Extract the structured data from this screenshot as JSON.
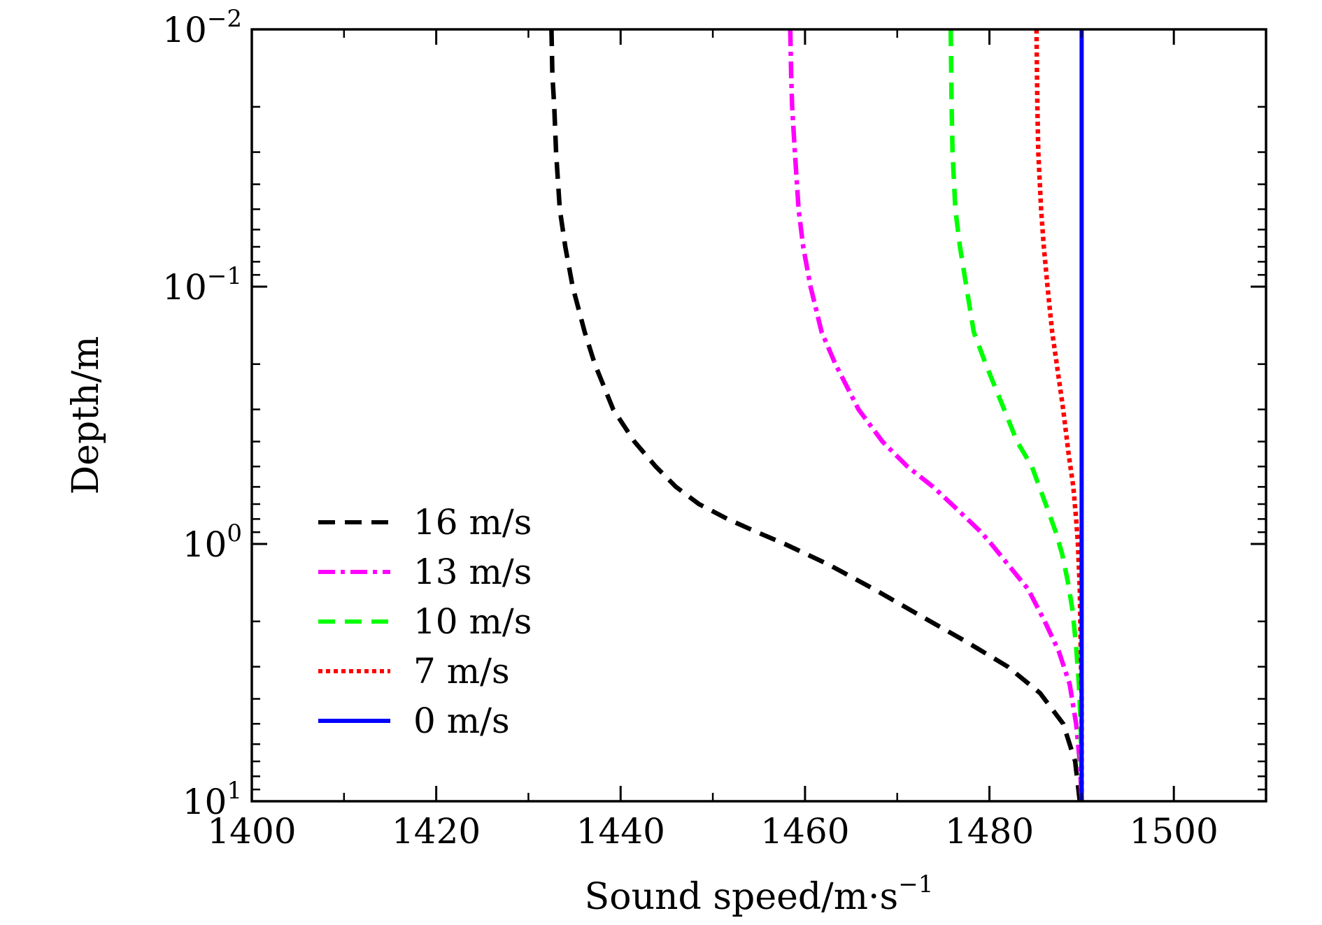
{
  "chart_data": {
    "type": "line",
    "title": "",
    "xlabel": "Sound speed/m·s",
    "xlabel_sup": "−1",
    "ylabel": "Depth/m",
    "xlim": [
      1400,
      1510
    ],
    "ylim": [
      0.01,
      10
    ],
    "yscale": "log",
    "y_inverted": true,
    "grid": false,
    "legend_position": "lower-left",
    "x_ticks": [
      1400,
      1420,
      1440,
      1460,
      1480,
      1500
    ],
    "y_ticks": [
      {
        "value": 0.01,
        "base": "10",
        "exp": "−2"
      },
      {
        "value": 0.1,
        "base": "10",
        "exp": "−1"
      },
      {
        "value": 1,
        "base": "10",
        "exp": "0"
      },
      {
        "value": 10,
        "base": "10",
        "exp": "1"
      }
    ],
    "series": [
      {
        "name": "16 m/s",
        "color": "#000000",
        "style": "dashed",
        "points": [
          [
            1432.5,
            0.01
          ],
          [
            1432.6,
            0.015
          ],
          [
            1432.8,
            0.02
          ],
          [
            1433.0,
            0.03
          ],
          [
            1433.4,
            0.05
          ],
          [
            1434.0,
            0.07
          ],
          [
            1434.8,
            0.1
          ],
          [
            1436.1,
            0.15
          ],
          [
            1437.2,
            0.2
          ],
          [
            1439.2,
            0.3
          ],
          [
            1441.5,
            0.4
          ],
          [
            1443.8,
            0.5
          ],
          [
            1446.0,
            0.6
          ],
          [
            1448.5,
            0.7
          ],
          [
            1451.6,
            0.8
          ],
          [
            1454.8,
            0.9
          ],
          [
            1457.8,
            1.0
          ],
          [
            1462.5,
            1.2
          ],
          [
            1467.5,
            1.5
          ],
          [
            1472.5,
            1.9
          ],
          [
            1477.5,
            2.4
          ],
          [
            1482.0,
            3.0
          ],
          [
            1485.5,
            3.8
          ],
          [
            1488.0,
            5.0
          ],
          [
            1489.3,
            7.0
          ],
          [
            1489.8,
            10.0
          ]
        ]
      },
      {
        "name": "13 m/s",
        "color": "#ff00ff",
        "style": "dashdot",
        "points": [
          [
            1458.4,
            0.01
          ],
          [
            1458.5,
            0.015
          ],
          [
            1458.6,
            0.02
          ],
          [
            1458.9,
            0.03
          ],
          [
            1459.3,
            0.05
          ],
          [
            1459.8,
            0.07
          ],
          [
            1460.6,
            0.1
          ],
          [
            1461.8,
            0.15
          ],
          [
            1463.3,
            0.2
          ],
          [
            1465.8,
            0.3
          ],
          [
            1468.4,
            0.4
          ],
          [
            1471.1,
            0.5
          ],
          [
            1473.9,
            0.6
          ],
          [
            1475.9,
            0.7
          ],
          [
            1477.6,
            0.8
          ],
          [
            1479.1,
            0.9
          ],
          [
            1480.2,
            1.0
          ],
          [
            1482.0,
            1.2
          ],
          [
            1484.2,
            1.5
          ],
          [
            1486.0,
            2.0
          ],
          [
            1487.5,
            2.6
          ],
          [
            1488.7,
            3.5
          ],
          [
            1489.4,
            5.0
          ],
          [
            1489.8,
            7.0
          ],
          [
            1490.0,
            10.0
          ]
        ]
      },
      {
        "name": "10 m/s",
        "color": "#00ff00",
        "style": "dashed",
        "points": [
          [
            1475.8,
            0.01
          ],
          [
            1475.9,
            0.02
          ],
          [
            1476.0,
            0.03
          ],
          [
            1476.3,
            0.05
          ],
          [
            1476.8,
            0.07
          ],
          [
            1477.5,
            0.1
          ],
          [
            1478.3,
            0.15
          ],
          [
            1479.6,
            0.2
          ],
          [
            1481.6,
            0.3
          ],
          [
            1483.0,
            0.4
          ],
          [
            1484.6,
            0.5
          ],
          [
            1486.1,
            0.7
          ],
          [
            1487.2,
            0.9
          ],
          [
            1487.9,
            1.1
          ],
          [
            1488.5,
            1.4
          ],
          [
            1489.0,
            1.8
          ],
          [
            1489.4,
            2.5
          ],
          [
            1489.7,
            3.5
          ],
          [
            1489.9,
            5.0
          ],
          [
            1490.0,
            10.0
          ]
        ]
      },
      {
        "name": "7 m/s",
        "color": "#ff0000",
        "style": "dotted",
        "points": [
          [
            1485.1,
            0.01
          ],
          [
            1485.2,
            0.02
          ],
          [
            1485.3,
            0.03
          ],
          [
            1485.6,
            0.05
          ],
          [
            1485.9,
            0.07
          ],
          [
            1486.3,
            0.1
          ],
          [
            1486.8,
            0.15
          ],
          [
            1487.3,
            0.2
          ],
          [
            1488.0,
            0.3
          ],
          [
            1488.6,
            0.45
          ],
          [
            1489.1,
            0.6
          ],
          [
            1489.4,
            0.8
          ],
          [
            1489.6,
            1.0
          ],
          [
            1489.8,
            1.5
          ],
          [
            1489.9,
            2.5
          ],
          [
            1490.0,
            4.0
          ],
          [
            1490.0,
            10.0
          ]
        ]
      },
      {
        "name": "0 m/s",
        "color": "#0000ff",
        "style": "solid",
        "points": [
          [
            1490.0,
            0.01
          ],
          [
            1490.0,
            10.0
          ]
        ]
      }
    ]
  }
}
